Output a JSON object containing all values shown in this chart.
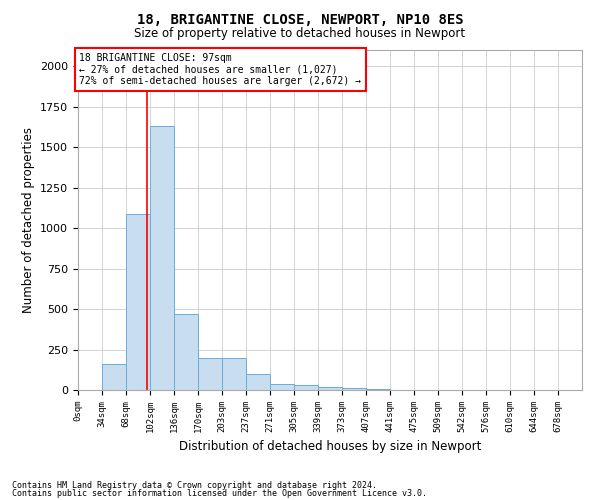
{
  "title1": "18, BRIGANTINE CLOSE, NEWPORT, NP10 8ES",
  "title2": "Size of property relative to detached houses in Newport",
  "xlabel": "Distribution of detached houses by size in Newport",
  "ylabel": "Number of detached properties",
  "bar_color": "#c9ddf0",
  "bar_edgecolor": "#6aaed6",
  "bar_linewidth": 0.7,
  "grid_color": "#cccccc",
  "background_color": "#ffffff",
  "property_line_x": 97,
  "property_line_color": "red",
  "annotation_line1": "18 BRIGANTINE CLOSE: 97sqm",
  "annotation_line2": "← 27% of detached houses are smaller (1,027)",
  "annotation_line3": "72% of semi-detached houses are larger (2,672) →",
  "footer1": "Contains HM Land Registry data © Crown copyright and database right 2024.",
  "footer2": "Contains public sector information licensed under the Open Government Licence v3.0.",
  "bin_edges": [
    0,
    34,
    68,
    102,
    136,
    170,
    203,
    237,
    271,
    305,
    339,
    373,
    407,
    441,
    475,
    509,
    542,
    576,
    610,
    644,
    678
  ],
  "bar_heights": [
    0,
    160,
    1090,
    1630,
    470,
    200,
    200,
    100,
    40,
    30,
    20,
    10,
    5,
    3,
    2,
    2,
    0,
    0,
    0,
    0
  ],
  "ylim": [
    0,
    2100
  ],
  "xlim": [
    0,
    712
  ],
  "figsize": [
    6.0,
    5.0
  ],
  "dpi": 100
}
